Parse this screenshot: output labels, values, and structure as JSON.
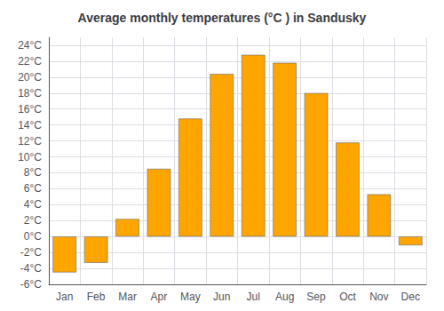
{
  "chart_data": {
    "type": "bar",
    "title": "Average monthly temperatures (°C ) in Sandusky",
    "categories": [
      "Jan",
      "Feb",
      "Mar",
      "Apr",
      "May",
      "Jun",
      "Jul",
      "Aug",
      "Sep",
      "Oct",
      "Nov",
      "Dec"
    ],
    "values": [
      -4.5,
      -3.3,
      2.2,
      8.5,
      14.8,
      20.4,
      22.8,
      21.8,
      18.0,
      11.8,
      5.3,
      -1.1
    ],
    "color": "#FFA500",
    "ylim": [
      -6,
      25
    ],
    "yticks": [
      {
        "value": -6,
        "label": "-6°C"
      },
      {
        "value": -4,
        "label": "-4°C"
      },
      {
        "value": -2,
        "label": "-2°C"
      },
      {
        "value": 0,
        "label": "0°C"
      },
      {
        "value": 2,
        "label": "2°C"
      },
      {
        "value": 4,
        "label": "4°C"
      },
      {
        "value": 6,
        "label": "6°C"
      },
      {
        "value": 8,
        "label": "8°C"
      },
      {
        "value": 10,
        "label": "10°C"
      },
      {
        "value": 12,
        "label": "12°C"
      },
      {
        "value": 14,
        "label": "14°C"
      },
      {
        "value": 16,
        "label": "16°C"
      },
      {
        "value": 18,
        "label": "18°C"
      },
      {
        "value": 20,
        "label": "20°C"
      },
      {
        "value": 22,
        "label": "22°C"
      },
      {
        "value": 24,
        "label": "24°C"
      }
    ],
    "grid": true
  }
}
